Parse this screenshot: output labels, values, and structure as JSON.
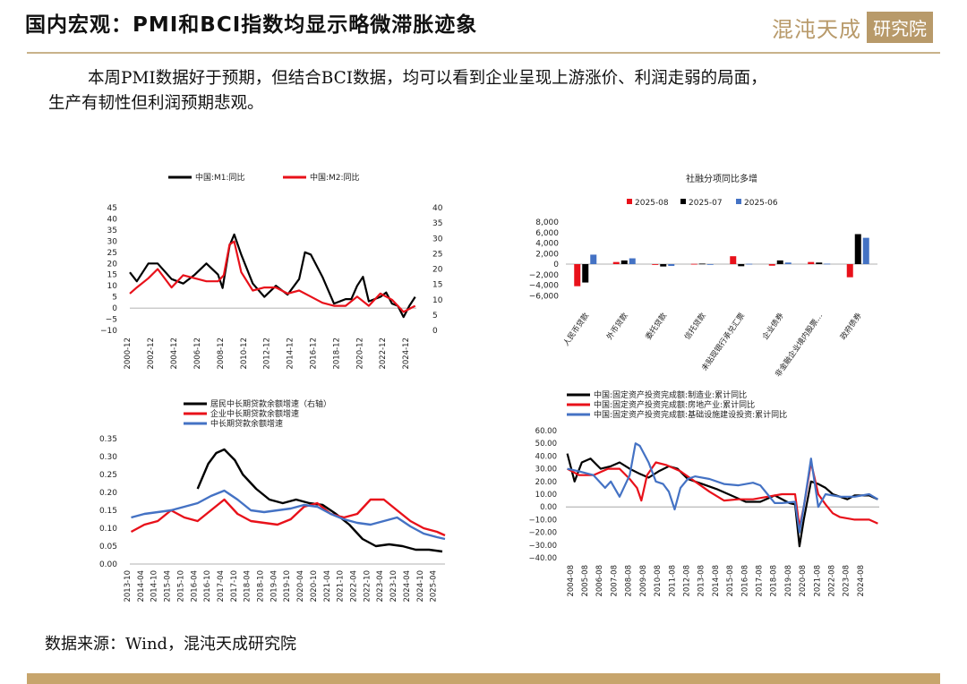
{
  "header": {
    "title": "国内宏观：PMI和BCI指数均显示略微滞胀迹象",
    "logo_text": "混沌天成",
    "logo_box": "研究院"
  },
  "body": {
    "line1": "本周PMI数据好于预期，但结合BCI数据，均可以看到企业呈现上游涨价、利润走弱的局面，",
    "line2": "生产有韧性但利润预期悲观。"
  },
  "footer": {
    "source": "数据来源：Wind，混沌天成研究院"
  },
  "colors": {
    "black": "#000000",
    "red": "#e8111a",
    "blue": "#4472c4",
    "gold": "#c7a56c"
  },
  "chart_data": [
    {
      "type": "line",
      "title": "",
      "legend": [
        "中国:M1:同比",
        "中国:M2:同比"
      ],
      "legend_position": "top",
      "ylim_left": [
        -10,
        45
      ],
      "yticks_left": [
        "45",
        "40",
        "35",
        "30",
        "25",
        "20",
        "15",
        "10",
        "5",
        "0",
        "−5",
        "−10"
      ],
      "ylim_right": [
        0,
        40
      ],
      "yticks_right": [
        "40",
        "35",
        "30",
        "25",
        "20",
        "15",
        "10",
        "5",
        "0"
      ],
      "xticks": [
        "2000-12",
        "2002-12",
        "2004-12",
        "2006-12",
        "2008-12",
        "2010-12",
        "2012-12",
        "2014-12",
        "2016-12",
        "2018-12",
        "2020-12",
        "2022-12",
        "2024-12"
      ],
      "series": [
        {
          "name": "中国:M1:同比",
          "color": "#000000",
          "x": [
            2000.9,
            2001.5,
            2002.5,
            2003.3,
            2004.5,
            2005.5,
            2006.5,
            2007.5,
            2008.5,
            2008.9,
            2009.5,
            2009.9,
            2010.5,
            2011.5,
            2012.5,
            2013.5,
            2014.5,
            2015.5,
            2016.0,
            2016.5,
            2017.5,
            2018.5,
            2019.5,
            2020.0,
            2020.5,
            2021.0,
            2021.5,
            2022.5,
            2023.0,
            2023.5,
            2024.0,
            2024.5,
            2025.0,
            2025.5
          ],
          "values": [
            16,
            12,
            20,
            20,
            13,
            11,
            15,
            20,
            15,
            9,
            28,
            33,
            24,
            11,
            5,
            10,
            6,
            13,
            25,
            24,
            14,
            2,
            4,
            4,
            10,
            14,
            3,
            5,
            7,
            2,
            1,
            -4,
            1,
            5
          ]
        },
        {
          "name": "中国:M2:同比",
          "color": "#e8111a",
          "x": [
            2000.9,
            2001.5,
            2002.5,
            2003.3,
            2004.5,
            2005.5,
            2006.5,
            2007.5,
            2008.5,
            2009.0,
            2009.5,
            2009.9,
            2010.5,
            2011.5,
            2012.5,
            2013.5,
            2014.5,
            2015.5,
            2016.5,
            2017.5,
            2018.5,
            2019.5,
            2020.5,
            2021.5,
            2022.5,
            2023.5,
            2024.0,
            2024.5,
            2025.0,
            2025.5
          ],
          "values": [
            12,
            14,
            17,
            20,
            14,
            18,
            17,
            16,
            16,
            18,
            28,
            29,
            19,
            13,
            14,
            14,
            12,
            13,
            11,
            9,
            8,
            8,
            11,
            8,
            12,
            10,
            8,
            6,
            7,
            8
          ]
        }
      ]
    },
    {
      "type": "bar",
      "title": "社融分项同比多增",
      "legend": [
        "2025-08",
        "2025-07",
        "2025-06"
      ],
      "legend_position": "top",
      "ylim": [
        -8000,
        8000
      ],
      "yticks": [
        "8,000",
        "6,000",
        "4,000",
        "2,000",
        "0",
        "−2,000",
        "−4,000",
        "−6,000"
      ],
      "categories": [
        "人民币贷款",
        "外币贷款",
        "委托贷款",
        "信托贷款",
        "未贴现银行承兑汇票",
        "企业债券",
        "非金融企业境内股票…",
        "政府债券"
      ],
      "series": [
        {
          "name": "2025-08",
          "color": "#e8111a",
          "values": [
            -4200,
            400,
            -150,
            50,
            1500,
            -300,
            400,
            -2500
          ]
        },
        {
          "name": "2025-07",
          "color": "#000000",
          "values": [
            -3500,
            700,
            -450,
            100,
            -400,
            700,
            300,
            5700
          ]
        },
        {
          "name": "2025-06",
          "color": "#4472c4",
          "values": [
            1800,
            1100,
            -350,
            -60,
            60,
            300,
            80,
            5000
          ]
        }
      ]
    },
    {
      "type": "line",
      "title": "",
      "legend": [
        "居民中长期贷款余额增速（右轴）",
        "企业中长期贷款余额增速",
        "中长期贷款余额增速"
      ],
      "legend_position": "top",
      "ylim": [
        0,
        0.35
      ],
      "yticks": [
        "0.35",
        "0.30",
        "0.25",
        "0.20",
        "0.15",
        "0.10",
        "0.05",
        "0.00"
      ],
      "xticks": [
        "2013-10",
        "2014-04",
        "2014-10",
        "2015-04",
        "2015-10",
        "2016-04",
        "2016-10",
        "2017-04",
        "2017-10",
        "2018-04",
        "2018-10",
        "2019-04",
        "2019-10",
        "2020-04",
        "2020-10",
        "2021-04",
        "2021-10",
        "2022-04",
        "2022-10",
        "2023-04",
        "2023-10",
        "2024-04",
        "2024-10",
        "2025-04"
      ],
      "series": [
        {
          "name": "居民中长期贷款余额增速（右轴）",
          "color": "#000000",
          "x": [
            2016.3,
            2016.7,
            2017.0,
            2017.3,
            2017.7,
            2018.0,
            2018.5,
            2019.0,
            2019.5,
            2020.0,
            2020.5,
            2021.0,
            2021.5,
            2022.0,
            2022.5,
            2023.0,
            2023.5,
            2024.0,
            2024.5,
            2025.0,
            2025.5
          ],
          "values": [
            0.21,
            0.28,
            0.31,
            0.32,
            0.29,
            0.25,
            0.21,
            0.18,
            0.17,
            0.18,
            0.17,
            0.165,
            0.14,
            0.11,
            0.07,
            0.05,
            0.055,
            0.05,
            0.04,
            0.04,
            0.035
          ]
        },
        {
          "name": "企业中长期贷款余额增速",
          "color": "#e8111a",
          "x": [
            2013.8,
            2014.3,
            2014.8,
            2015.3,
            2015.8,
            2016.3,
            2016.8,
            2017.3,
            2017.8,
            2018.3,
            2018.8,
            2019.3,
            2019.8,
            2020.3,
            2020.8,
            2021.3,
            2021.8,
            2022.3,
            2022.8,
            2023.3,
            2023.8,
            2024.3,
            2024.8,
            2025.3,
            2025.6
          ],
          "values": [
            0.09,
            0.11,
            0.12,
            0.15,
            0.13,
            0.12,
            0.15,
            0.18,
            0.14,
            0.12,
            0.115,
            0.11,
            0.125,
            0.16,
            0.17,
            0.14,
            0.13,
            0.14,
            0.18,
            0.18,
            0.15,
            0.12,
            0.1,
            0.09,
            0.08
          ]
        },
        {
          "name": "中长期贷款余额增速",
          "color": "#4472c4",
          "x": [
            2013.8,
            2014.3,
            2014.8,
            2015.3,
            2015.8,
            2016.3,
            2016.8,
            2017.3,
            2017.8,
            2018.3,
            2018.8,
            2019.3,
            2019.8,
            2020.3,
            2020.8,
            2021.3,
            2021.8,
            2022.3,
            2022.8,
            2023.3,
            2023.8,
            2024.3,
            2024.8,
            2025.3,
            2025.6
          ],
          "values": [
            0.13,
            0.14,
            0.145,
            0.15,
            0.16,
            0.17,
            0.19,
            0.205,
            0.18,
            0.15,
            0.145,
            0.15,
            0.155,
            0.165,
            0.16,
            0.14,
            0.125,
            0.115,
            0.11,
            0.12,
            0.13,
            0.105,
            0.085,
            0.075,
            0.07
          ]
        }
      ]
    },
    {
      "type": "line",
      "title": "",
      "legend": [
        "中国:固定资产投资完成额:制造业:累计同比",
        "中国:固定资产投资完成额:房地产业:累计同比",
        "中国:固定资产投资完成额:基础设施建设投资:累计同比"
      ],
      "legend_position": "top",
      "ylim": [
        -40,
        60
      ],
      "yticks": [
        "60.00",
        "50.00",
        "40.00",
        "30.00",
        "20.00",
        "10.00",
        "0.00",
        "−10.00",
        "−20.00",
        "−30.00",
        "−40.00"
      ],
      "xticks": [
        "2004-08",
        "2005-08",
        "2006-08",
        "2007-08",
        "2008-08",
        "2009-08",
        "2010-08",
        "2011-08",
        "2012-08",
        "2013-08",
        "2014-08",
        "2015-08",
        "2016-08",
        "2017-08",
        "2018-08",
        "2019-08",
        "2020-08",
        "2021-08",
        "2022-08",
        "2023-08",
        "2024-08"
      ],
      "series": [
        {
          "name": "中国:固定资产投资完成额:制造业:累计同比",
          "color": "#000000",
          "x": [
            2004.2,
            2004.7,
            2005.2,
            2005.8,
            2006.5,
            2007.2,
            2007.8,
            2008.5,
            2009.2,
            2009.8,
            2010.5,
            2011.2,
            2011.8,
            2012.5,
            2013.5,
            2014.5,
            2015.5,
            2016.5,
            2017.5,
            2018.5,
            2019.5,
            2019.9,
            2020.2,
            2020.5,
            2021.0,
            2021.5,
            2022.0,
            2022.5,
            2023.0,
            2023.5,
            2024.0,
            2024.5,
            2025.0,
            2025.6
          ],
          "values": [
            42,
            20,
            35,
            38,
            30,
            32,
            35,
            30,
            26,
            23,
            28,
            32,
            30,
            22,
            18,
            14,
            9,
            4,
            4,
            9,
            3,
            2,
            -31,
            -10,
            20,
            18,
            15,
            10,
            8,
            6,
            9,
            9,
            9,
            6
          ]
        },
        {
          "name": "中国:固定资产投资完成额:房地产业:累计同比",
          "color": "#e8111a",
          "x": [
            2004.2,
            2005.0,
            2006.0,
            2007.0,
            2007.8,
            2008.5,
            2009.0,
            2009.3,
            2009.7,
            2010.3,
            2011.0,
            2012.0,
            2013.0,
            2014.0,
            2015.0,
            2016.0,
            2017.0,
            2018.0,
            2019.0,
            2019.9,
            2020.2,
            2020.5,
            2021.0,
            2021.5,
            2022.0,
            2022.5,
            2023.0,
            2024.0,
            2025.0,
            2025.6
          ],
          "values": [
            30,
            25,
            25,
            30,
            30,
            22,
            15,
            5,
            25,
            35,
            33,
            28,
            20,
            12,
            5,
            6,
            6,
            8,
            10,
            10,
            -16,
            0,
            35,
            10,
            2,
            -5,
            -8,
            -10,
            -10,
            -13
          ]
        },
        {
          "name": "中国:固定资产投资完成额:基础设施建设投资:累计同比",
          "color": "#4472c4",
          "x": [
            2004.2,
            2005.0,
            2006.0,
            2006.8,
            2007.2,
            2007.8,
            2008.5,
            2008.9,
            2009.2,
            2009.8,
            2010.3,
            2010.8,
            2011.2,
            2011.6,
            2012.0,
            2012.5,
            2013.0,
            2014.0,
            2015.0,
            2016.0,
            2017.0,
            2017.5,
            2018.0,
            2018.5,
            2019.0,
            2019.9,
            2020.2,
            2020.5,
            2021.0,
            2021.5,
            2022.0,
            2023.0,
            2024.0,
            2025.0,
            2025.6
          ],
          "values": [
            30,
            28,
            25,
            15,
            20,
            8,
            25,
            50,
            48,
            35,
            20,
            18,
            12,
            -2,
            15,
            22,
            24,
            22,
            18,
            17,
            19,
            17,
            10,
            3,
            3,
            4,
            -20,
            0,
            38,
            0,
            10,
            8,
            8,
            10,
            6
          ]
        }
      ]
    }
  ]
}
